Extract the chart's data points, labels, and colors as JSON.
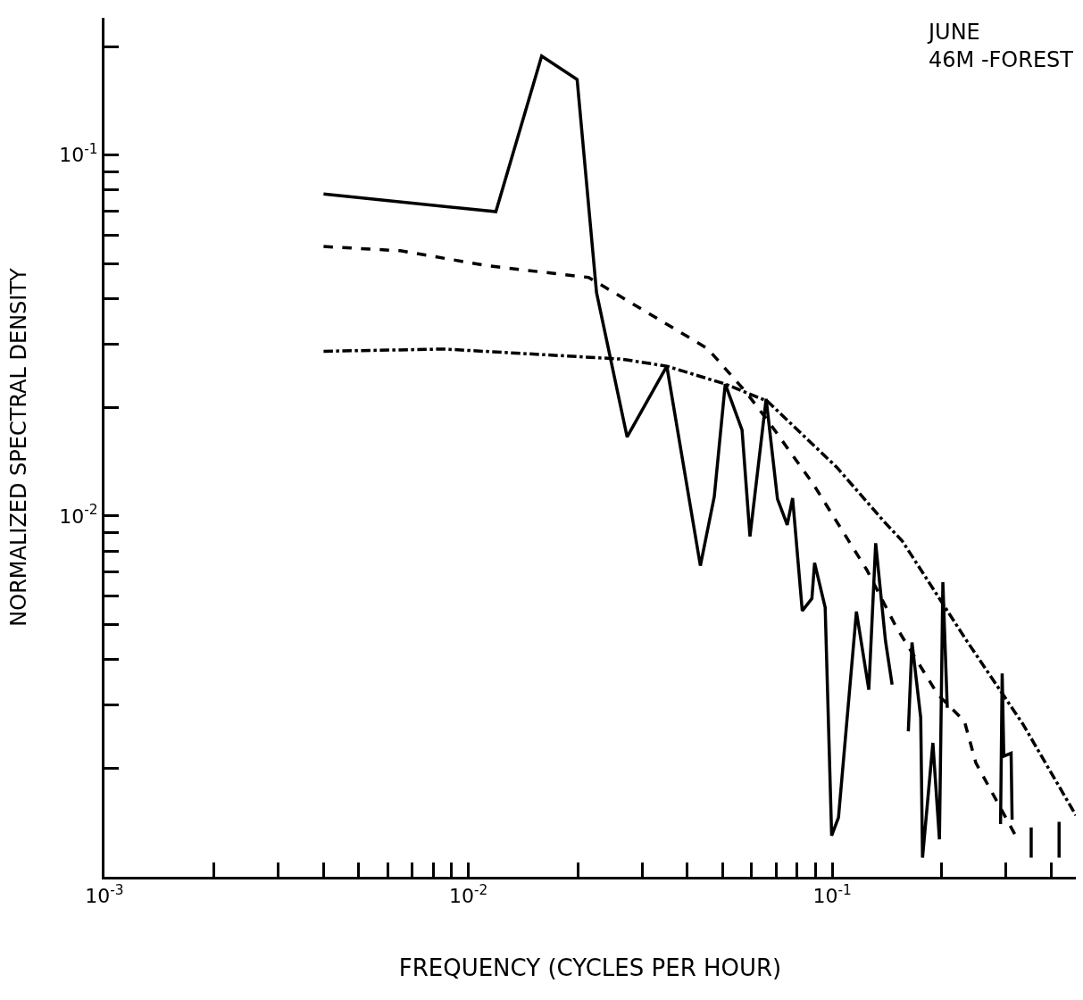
{
  "chart_data": {
    "type": "line",
    "xlabel": "FREQUENCY (CYCLES PER HOUR)",
    "ylabel": "NORMALIZED SPECTRAL DENSITY",
    "annotations": [
      "JUNE\n46M -FOREST"
    ],
    "log": "xy",
    "marker": "none",
    "xlim": [
      0.001,
      0.467
    ],
    "ylim": [
      0.001,
      0.24
    ],
    "xticks": [
      {
        "value": 0.001,
        "label": "10$^{-3}$"
      },
      {
        "value": 0.002,
        "label": null
      },
      {
        "value": 0.003,
        "label": null
      },
      {
        "value": 0.004,
        "label": null
      },
      {
        "value": 0.005,
        "label": null
      },
      {
        "value": 0.006,
        "label": null
      },
      {
        "value": 0.007,
        "label": null
      },
      {
        "value": 0.008,
        "label": null
      },
      {
        "value": 0.009,
        "label": null
      },
      {
        "value": 0.01,
        "label": "10$^{-2}$"
      },
      {
        "value": 0.02,
        "label": null
      },
      {
        "value": 0.03,
        "label": null
      },
      {
        "value": 0.04,
        "label": null
      },
      {
        "value": 0.05,
        "label": null
      },
      {
        "value": 0.06,
        "label": null
      },
      {
        "value": 0.07,
        "label": null
      },
      {
        "value": 0.08,
        "label": null
      },
      {
        "value": 0.09,
        "label": null
      },
      {
        "value": 0.1,
        "label": "10$^{-1}$"
      },
      {
        "value": 0.2,
        "label": null
      },
      {
        "value": 0.3,
        "label": null
      },
      {
        "value": 0.4,
        "label": null
      }
    ],
    "yticks": [
      {
        "value": 0.002,
        "label": null
      },
      {
        "value": 0.003,
        "label": null
      },
      {
        "value": 0.004,
        "label": null
      },
      {
        "value": 0.005,
        "label": null
      },
      {
        "value": 0.006,
        "label": null
      },
      {
        "value": 0.007,
        "label": null
      },
      {
        "value": 0.008,
        "label": null
      },
      {
        "value": 0.009,
        "label": null
      },
      {
        "value": 0.01,
        "label": "10$^{-2}$"
      },
      {
        "value": 0.02,
        "label": null
      },
      {
        "value": 0.03,
        "label": null
      },
      {
        "value": 0.04,
        "label": null
      },
      {
        "value": 0.05,
        "label": null
      },
      {
        "value": 0.06,
        "label": null
      },
      {
        "value": 0.07,
        "label": null
      },
      {
        "value": 0.08,
        "label": null
      },
      {
        "value": 0.09,
        "label": null
      },
      {
        "value": 0.1,
        "label": "10$^{-1}$"
      },
      {
        "value": 0.2,
        "label": null
      }
    ],
    "series": [
      {
        "color": "#000000",
        "line_style": "solid",
        "x": [
          0.004,
          0.0119,
          0.0159,
          0.0199,
          0.0225,
          0.0273,
          0.0351,
          0.0434,
          0.0474,
          0.0508,
          0.0565,
          0.0594,
          0.0658,
          0.0707,
          0.0752,
          0.0778,
          0.0827,
          0.0879,
          0.0894,
          0.0956,
          0.0996,
          0.104,
          0.1165,
          0.126,
          0.1316,
          0.14,
          0.146,
          0.15,
          0.1618,
          0.1656,
          0.175,
          0.177,
          0.189,
          0.197,
          0.2013,
          0.207,
          0.25,
          0.29,
          0.293,
          0.296,
          0.31,
          0.312,
          0.33,
          0.352,
          0.352,
          0.38,
          0.42,
          0.42
        ],
        "values": [
          0.078,
          0.0697,
          0.188,
          0.162,
          0.0416,
          0.01655,
          0.026,
          0.00728,
          0.01132,
          0.0232,
          0.0173,
          0.00877,
          0.0211,
          0.01114,
          0.00944,
          0.0112,
          0.00546,
          0.0059,
          0.00741,
          0.00558,
          0.0013,
          0.00146,
          0.00543,
          0.0033,
          0.0084,
          0.00451,
          0.00341,
          null,
          0.00253,
          0.00446,
          0.00276,
          0.00113,
          0.00235,
          0.00127,
          0.00655,
          0.00294,
          null,
          0.0014,
          0.00366,
          0.00216,
          0.0022,
          0.00144,
          null,
          0.00137,
          0.00113,
          null,
          0.00142,
          0.00113
        ]
      },
      {
        "color": "#000000",
        "line_style": "dashed",
        "x": [
          0.004,
          0.0065,
          0.01137,
          0.0214,
          0.0454,
          0.0578,
          0.0672,
          0.0889,
          0.1245,
          0.1497,
          0.195,
          0.2307,
          0.248,
          0.319
        ],
        "values": [
          0.0558,
          0.0543,
          0.0493,
          0.0458,
          0.0291,
          0.0221,
          0.0181,
          0.0122,
          0.00708,
          0.00493,
          0.0032,
          0.0027,
          0.00207,
          0.0013
        ]
      },
      {
        "color": "#000000",
        "line_style": "dashdot",
        "x": [
          0.004,
          0.0086,
          0.0264,
          0.0351,
          0.0508,
          0.0663,
          0.1028,
          0.14,
          0.1556,
          0.234,
          0.334,
          0.467
        ],
        "values": [
          0.0286,
          0.029,
          0.0272,
          0.026,
          0.0232,
          0.0208,
          0.01365,
          0.00955,
          0.00853,
          0.00451,
          0.00265,
          0.00148
        ]
      }
    ]
  }
}
